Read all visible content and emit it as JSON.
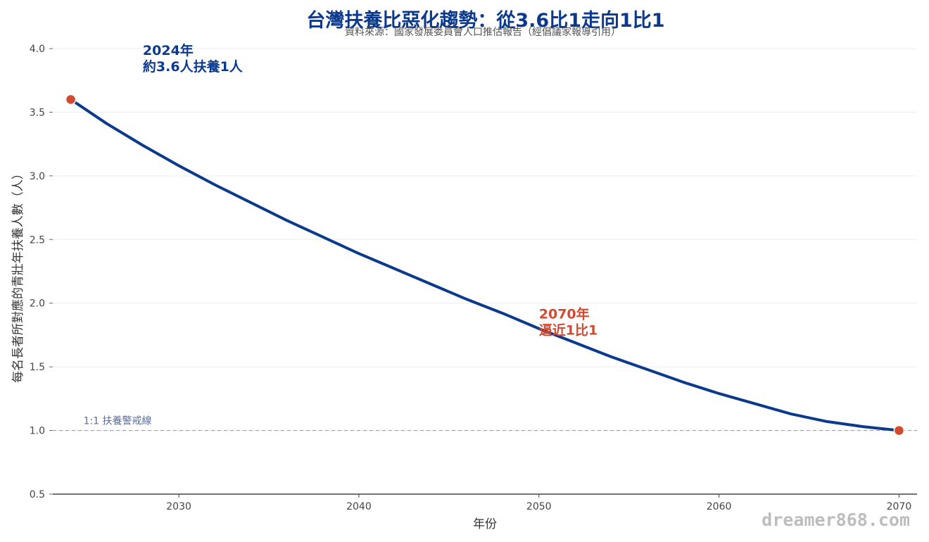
{
  "chart_data": {
    "type": "line",
    "title": "台灣扶養比惡化趨勢：從3.6比1走向1比1",
    "subtitle": "資料來源：國家發展委員會人口推估報告（經倡議家報導引用）",
    "xlabel": "年份",
    "ylabel": "每名長者所對應的青壯年扶養人數（人）",
    "xlim": [
      2023,
      2071
    ],
    "ylim": [
      0.5,
      4.0
    ],
    "x_ticks": [
      2030,
      2040,
      2050,
      2060,
      2070
    ],
    "y_ticks": [
      0.5,
      1.0,
      1.5,
      2.0,
      2.5,
      3.0,
      3.5,
      4.0
    ],
    "y_tick_labels": [
      "0.5",
      "1.0",
      "1.5",
      "2.0",
      "2.5",
      "3.0",
      "3.5",
      "4.0"
    ],
    "grid": "horizontal",
    "series": [
      {
        "x": [
          2024,
          2026,
          2028,
          2030,
          2032,
          2034,
          2036,
          2038,
          2040,
          2042,
          2044,
          2046,
          2048,
          2050,
          2052,
          2054,
          2056,
          2058,
          2060,
          2062,
          2064,
          2066,
          2068,
          2070
        ],
        "values": [
          3.6,
          3.41,
          3.24,
          3.08,
          2.93,
          2.79,
          2.65,
          2.52,
          2.39,
          2.27,
          2.15,
          2.03,
          1.92,
          1.8,
          1.69,
          1.58,
          1.48,
          1.38,
          1.29,
          1.21,
          1.13,
          1.07,
          1.03,
          1.0
        ],
        "color": "#0b3a8c"
      }
    ],
    "markers": [
      {
        "x": 2024,
        "y": 3.6,
        "color": "#d24a2f"
      },
      {
        "x": 2070,
        "y": 1.0,
        "color": "#d24a2f"
      }
    ],
    "reference_line": {
      "y": 1.0,
      "label": "1:1 扶養警戒線",
      "color": "#9aa5bd"
    },
    "annotations": [
      {
        "lines": [
          "2024年",
          "約3.6人扶養1人"
        ],
        "x": 2028,
        "y": 3.95,
        "color": "#0b3a8c"
      },
      {
        "lines": [
          "2070年",
          "逼近1比1"
        ],
        "x": 2050,
        "y": 1.88,
        "color": "#d24a2f"
      }
    ]
  },
  "watermark": "dreamer868.com"
}
